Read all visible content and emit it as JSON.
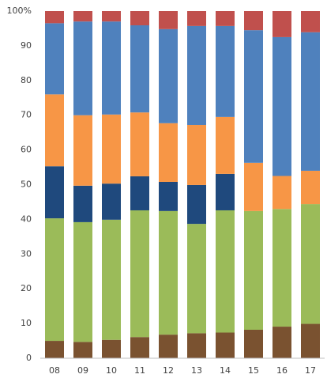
{
  "chart_data": {
    "type": "stacked_bar",
    "categories": [
      "08",
      "09",
      "10",
      "11",
      "12",
      "13",
      "14",
      "15",
      "16",
      "17"
    ],
    "series": [
      {
        "color": "#7a5230",
        "values": [
          5,
          4.7,
          5.3,
          6.1,
          6.8,
          7.2,
          7.4,
          8.2,
          9.1,
          9.9
        ]
      },
      {
        "color": "#9bbb59",
        "values": [
          35.3,
          34.5,
          34.6,
          36.5,
          35.6,
          31.5,
          35.2,
          34.2,
          33.9,
          34.5
        ]
      },
      {
        "color": "#1f497d",
        "values": [
          15,
          10.5,
          10.4,
          9.8,
          8.4,
          11.2,
          10.5,
          0,
          0,
          0
        ]
      },
      {
        "color": "#f79646",
        "values": [
          20.7,
          20.3,
          19.9,
          18.4,
          16.9,
          17.3,
          16.4,
          13.9,
          9.5,
          9.6
        ]
      },
      {
        "color": "#4f81bd",
        "values": [
          20.5,
          27,
          26.8,
          25.1,
          27.1,
          28.5,
          26.2,
          38.2,
          40,
          39.9
        ]
      },
      {
        "color": "#c0504d",
        "values": [
          3.5,
          3,
          3,
          4.1,
          5.2,
          4.3,
          4.3,
          5.5,
          7.5,
          6.1
        ]
      }
    ],
    "ylim": [
      0,
      100
    ],
    "yticks": [
      0,
      10,
      20,
      30,
      40,
      50,
      60,
      70,
      80,
      90,
      {
        "value": 100,
        "label": "100%"
      }
    ],
    "grid": false
  }
}
